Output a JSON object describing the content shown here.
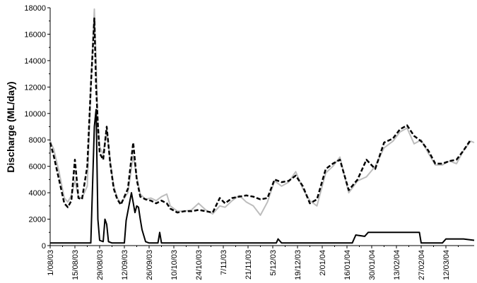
{
  "chart_data": {
    "type": "line",
    "ylabel": "Discharge (ML/day)",
    "xlabel": "",
    "ylim": [
      0,
      18000
    ],
    "yticks": [
      0,
      2000,
      4000,
      6000,
      8000,
      10000,
      12000,
      14000,
      16000,
      18000
    ],
    "ytick_labels": [
      "0",
      "2000",
      "4000",
      "6000",
      "8000",
      "10000",
      "12000",
      "14000",
      "16000",
      "18000"
    ],
    "xlim": [
      "2003-08-01",
      "2004-03-28"
    ],
    "xticks": [
      "2003-08-01",
      "2003-08-15",
      "2003-08-29",
      "2003-09-12",
      "2003-09-26",
      "2003-10-10",
      "2003-10-24",
      "2003-11-07",
      "2003-11-21",
      "2003-12-05",
      "2003-12-19",
      "2004-01-02",
      "2004-01-16",
      "2004-01-30",
      "2004-02-13",
      "2004-02-27",
      "2004-03-12"
    ],
    "xtick_labels": [
      "1/08/03",
      "15/08/03",
      "29/08/03",
      "12/09/03",
      "26/09/03",
      "10/10/03",
      "24/10/03",
      "7/11/03",
      "21/11/03",
      "5/12/03",
      "19/12/03",
      "2/01/04",
      "16/01/04",
      "30/01/04",
      "13/02/04",
      "27/02/04",
      "12/03/04"
    ],
    "grid": false,
    "legend": "none",
    "series": [
      {
        "style": "solid-grey",
        "color": "#bdbdbd",
        "x": [
          "2003-08-01",
          "2003-08-03",
          "2003-08-06",
          "2003-08-09",
          "2003-08-11",
          "2003-08-13",
          "2003-08-15",
          "2003-08-17",
          "2003-08-19",
          "2003-08-22",
          "2003-08-24",
          "2003-08-26",
          "2003-08-27",
          "2003-08-28",
          "2003-08-29",
          "2003-08-31",
          "2003-09-02",
          "2003-09-04",
          "2003-09-06",
          "2003-09-08",
          "2003-09-10",
          "2003-09-14",
          "2003-09-17",
          "2003-09-19",
          "2003-09-21",
          "2003-09-24",
          "2003-09-27",
          "2003-09-30",
          "2003-10-03",
          "2003-10-06",
          "2003-10-08",
          "2003-10-12",
          "2003-10-16",
          "2003-10-20",
          "2003-10-24",
          "2003-10-28",
          "2003-11-01",
          "2003-11-05",
          "2003-11-08",
          "2003-11-12",
          "2003-11-16",
          "2003-11-20",
          "2003-11-24",
          "2003-11-28",
          "2003-12-02",
          "2003-12-06",
          "2003-12-10",
          "2003-12-14",
          "2003-12-18",
          "2003-12-22",
          "2003-12-26",
          "2003-12-30",
          "2004-01-04",
          "2004-01-08",
          "2004-01-12",
          "2004-01-17",
          "2004-01-22",
          "2004-01-27",
          "2004-02-01",
          "2004-02-06",
          "2004-02-11",
          "2004-02-15",
          "2004-02-19",
          "2004-02-23",
          "2004-02-27",
          "2004-03-02",
          "2004-03-06",
          "2004-03-10",
          "2004-03-14",
          "2004-03-18",
          "2004-03-22",
          "2004-03-26",
          "2004-03-28"
        ],
        "y": [
          7900,
          7300,
          5600,
          3600,
          3300,
          3800,
          4900,
          3700,
          3600,
          4500,
          12000,
          17900,
          14000,
          9000,
          7500,
          6900,
          8800,
          6400,
          4500,
          3600,
          3200,
          4000,
          6800,
          5200,
          3900,
          3500,
          3600,
          3400,
          3700,
          3900,
          3000,
          2600,
          2600,
          2700,
          3200,
          2700,
          2400,
          3000,
          2900,
          3400,
          3800,
          3300,
          3000,
          2300,
          3300,
          4900,
          4500,
          4800,
          5600,
          4300,
          3400,
          3000,
          5500,
          6000,
          6700,
          4000,
          4900,
          5200,
          6000,
          7400,
          7900,
          8600,
          8900,
          7700,
          8000,
          7000,
          6100,
          6100,
          6400,
          6200,
          7200,
          7900,
          7800
        ]
      },
      {
        "style": "dashed-black",
        "color": "#000000",
        "x": [
          "2003-08-01",
          "2003-08-03",
          "2003-08-06",
          "2003-08-09",
          "2003-08-11",
          "2003-08-13",
          "2003-08-15",
          "2003-08-17",
          "2003-08-19",
          "2003-08-22",
          "2003-08-24",
          "2003-08-26",
          "2003-08-27",
          "2003-08-28",
          "2003-08-29",
          "2003-08-31",
          "2003-09-02",
          "2003-09-04",
          "2003-09-06",
          "2003-09-08",
          "2003-09-10",
          "2003-09-14",
          "2003-09-17",
          "2003-09-19",
          "2003-09-21",
          "2003-09-24",
          "2003-09-27",
          "2003-09-30",
          "2003-10-03",
          "2003-10-06",
          "2003-10-08",
          "2003-10-12",
          "2003-10-16",
          "2003-10-20",
          "2003-10-24",
          "2003-10-28",
          "2003-11-01",
          "2003-11-05",
          "2003-11-08",
          "2003-11-12",
          "2003-11-16",
          "2003-11-20",
          "2003-11-24",
          "2003-11-28",
          "2003-12-02",
          "2003-12-06",
          "2003-12-10",
          "2003-12-14",
          "2003-12-18",
          "2003-12-22",
          "2003-12-26",
          "2003-12-30",
          "2004-01-04",
          "2004-01-08",
          "2004-01-12",
          "2004-01-17",
          "2004-01-22",
          "2004-01-27",
          "2004-02-01",
          "2004-02-06",
          "2004-02-11",
          "2004-02-15",
          "2004-02-19",
          "2004-02-23",
          "2004-02-27",
          "2004-03-02",
          "2004-03-06",
          "2004-03-10",
          "2004-03-14",
          "2004-03-18",
          "2004-03-22",
          "2004-03-26"
        ],
        "y": [
          7800,
          6800,
          5000,
          3200,
          2900,
          3400,
          6500,
          3600,
          3500,
          6000,
          12000,
          17200,
          12000,
          9200,
          7000,
          6500,
          9000,
          6200,
          4300,
          3500,
          3100,
          4300,
          7800,
          5000,
          3700,
          3500,
          3400,
          3200,
          3400,
          3200,
          2800,
          2500,
          2600,
          2600,
          2700,
          2600,
          2500,
          3600,
          3200,
          3600,
          3700,
          3800,
          3700,
          3500,
          3600,
          5000,
          4800,
          4900,
          5300,
          4500,
          3200,
          3500,
          5800,
          6200,
          6500,
          4200,
          5000,
          6500,
          5800,
          7800,
          8100,
          8800,
          9100,
          8300,
          7900,
          7200,
          6200,
          6200,
          6400,
          6500,
          7200,
          8000
        ]
      },
      {
        "style": "solid-black",
        "color": "#000000",
        "x": [
          "2003-08-01",
          "2003-08-24",
          "2003-08-26",
          "2003-08-27",
          "2003-08-28",
          "2003-08-29",
          "2003-08-31",
          "2003-09-01",
          "2003-09-02",
          "2003-09-03",
          "2003-09-05",
          "2003-09-12",
          "2003-09-13",
          "2003-09-16",
          "2003-09-18",
          "2003-09-19",
          "2003-09-20",
          "2003-09-21",
          "2003-09-22",
          "2003-09-24",
          "2003-09-26",
          "2003-10-01",
          "2003-10-02",
          "2003-10-03",
          "2003-12-07",
          "2003-12-08",
          "2003-12-10",
          "2004-01-19",
          "2004-01-20",
          "2004-01-21",
          "2004-01-26",
          "2004-01-28",
          "2004-02-26",
          "2004-02-27",
          "2004-03-10",
          "2004-03-12",
          "2004-03-22",
          "2004-03-28"
        ],
        "y": [
          200,
          200,
          9000,
          10300,
          2000,
          400,
          300,
          2000,
          1600,
          300,
          200,
          200,
          1900,
          4000,
          2500,
          3000,
          2900,
          2000,
          1200,
          300,
          200,
          200,
          1000,
          200,
          200,
          500,
          200,
          200,
          500,
          800,
          700,
          1000,
          1000,
          200,
          200,
          500,
          500,
          400
        ]
      }
    ]
  }
}
